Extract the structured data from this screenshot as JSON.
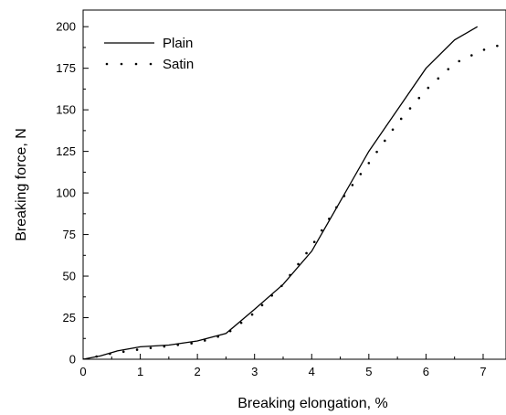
{
  "chart_data": {
    "type": "line",
    "title": "",
    "xlabel": "Breaking elongation, %",
    "ylabel": "Breaking force, N",
    "xlim": [
      0,
      7.4
    ],
    "ylim": [
      0,
      210
    ],
    "x_ticks": [
      0,
      1,
      2,
      3,
      4,
      5,
      6,
      7
    ],
    "y_ticks": [
      0,
      25,
      50,
      75,
      100,
      125,
      150,
      175,
      200
    ],
    "grid": false,
    "legend_position": "top-left",
    "series": [
      {
        "name": "Plain",
        "style": "solid",
        "color": "#000000",
        "points": [
          [
            0,
            0
          ],
          [
            0.3,
            2
          ],
          [
            0.6,
            5
          ],
          [
            1.0,
            7.5
          ],
          [
            1.5,
            8.5
          ],
          [
            2.0,
            11
          ],
          [
            2.5,
            15.5
          ],
          [
            3.0,
            30
          ],
          [
            3.5,
            45
          ],
          [
            4.0,
            65
          ],
          [
            4.5,
            95
          ],
          [
            5.0,
            125
          ],
          [
            5.5,
            150
          ],
          [
            6.0,
            175
          ],
          [
            6.5,
            192
          ],
          [
            6.9,
            200
          ]
        ]
      },
      {
        "name": "Satin",
        "style": "dotted",
        "color": "#000000",
        "points": [
          [
            0,
            0
          ],
          [
            0.5,
            3.5
          ],
          [
            1.0,
            6
          ],
          [
            1.5,
            8
          ],
          [
            2.0,
            10
          ],
          [
            2.5,
            15
          ],
          [
            3.0,
            28
          ],
          [
            3.5,
            45
          ],
          [
            4.0,
            68
          ],
          [
            4.5,
            95
          ],
          [
            5.0,
            118
          ],
          [
            5.5,
            142
          ],
          [
            6.0,
            162
          ],
          [
            6.5,
            178
          ],
          [
            7.0,
            186
          ],
          [
            7.4,
            190
          ]
        ]
      }
    ]
  }
}
